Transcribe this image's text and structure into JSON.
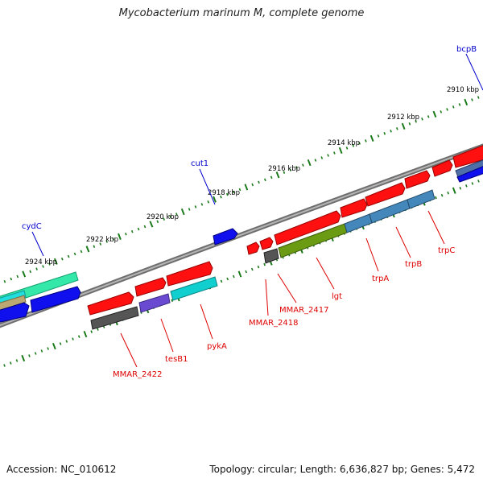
{
  "title": "Mycobacterium marinum M, complete genome",
  "footer": {
    "accession": "Accession: NC_010612",
    "summary": "Topology: circular; Length: 6,636,827 bp; Genes: 5,472"
  },
  "colors": {
    "backbone": "#808080",
    "ruler": "#1a7a1a",
    "label_forward": "#0000cc",
    "label_reverse": "#dd0000"
  },
  "ruler_labels": [
    "2910 kbp",
    "2912 kbp",
    "2914 kbp",
    "2916 kbp",
    "2918 kbp",
    "2920 kbp",
    "2922 kbp",
    "2924 kbp"
  ],
  "gene_labels_forward": [
    "bcpB",
    "cut1",
    "cydC"
  ],
  "gene_labels_reverse": [
    "trpC",
    "trpB",
    "trpA",
    "lgt",
    "MMAR_2417",
    "MMAR_2418",
    "pykA",
    "tesB1",
    "MMAR_2422"
  ]
}
